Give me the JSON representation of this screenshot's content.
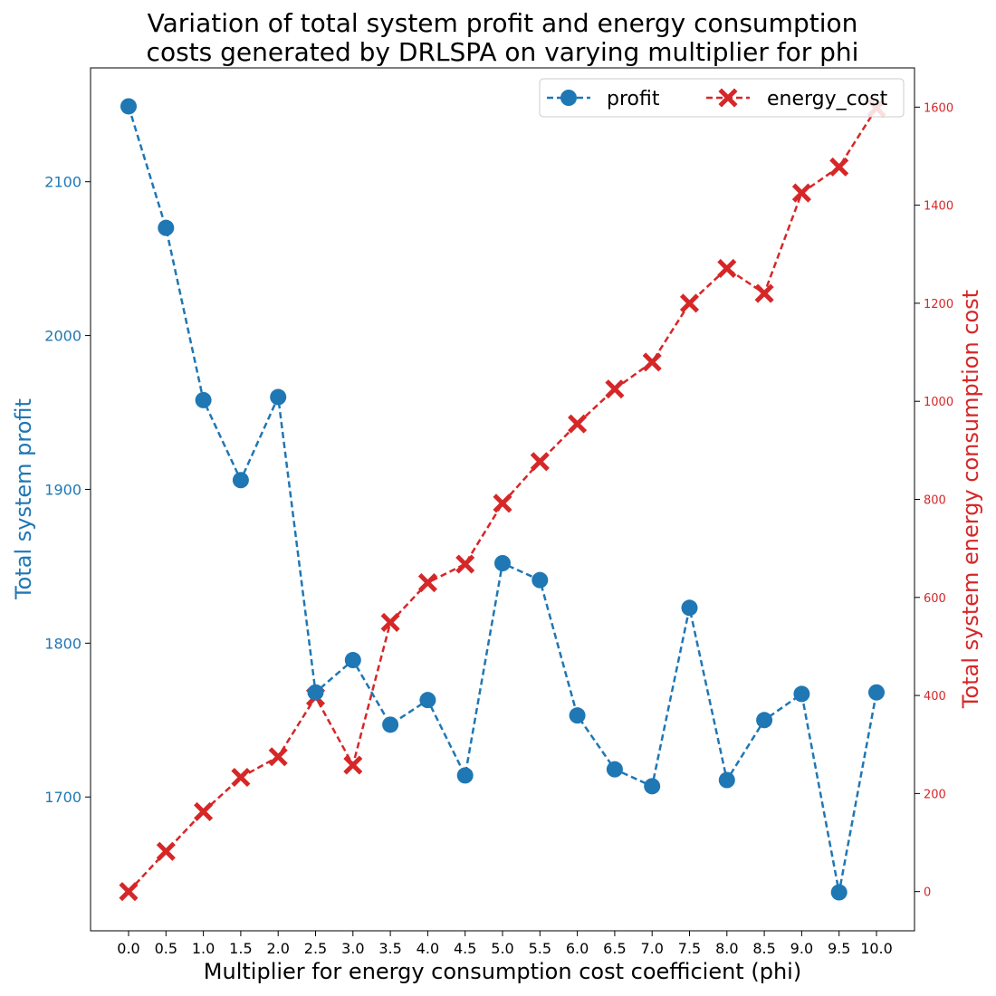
{
  "chart_data": {
    "type": "line",
    "title_line1": "Variation of total system profit and energy consumption",
    "title_line2": "costs generated by DRLSPA on varying multiplier for phi",
    "xlabel": "Multiplier for energy consumption cost coefficient (phi)",
    "ylabel_left": "Total system profit",
    "ylabel_right": "Total system energy consumption cost",
    "x": [
      0.0,
      0.5,
      1.0,
      1.5,
      2.0,
      2.5,
      3.0,
      3.5,
      4.0,
      4.5,
      5.0,
      5.5,
      6.0,
      6.5,
      7.0,
      7.5,
      8.0,
      8.5,
      9.0,
      9.5,
      10.0
    ],
    "x_tick_labels": [
      "0.0",
      "0.5",
      "1.0",
      "1.5",
      "2.0",
      "2.5",
      "3.0",
      "3.5",
      "4.0",
      "4.5",
      "5.0",
      "5.5",
      "6.0",
      "6.5",
      "7.0",
      "7.5",
      "8.0",
      "8.5",
      "9.0",
      "9.5",
      "10.0"
    ],
    "y_left_ticks": [
      1700,
      1800,
      1900,
      2000,
      2100
    ],
    "y_right_ticks": [
      0,
      200,
      400,
      600,
      800,
      1000,
      1200,
      1400,
      1600
    ],
    "y_left_lim": [
      1613,
      2174
    ],
    "y_right_lim": [
      -80,
      1680
    ],
    "legend_position": "top-right",
    "series": [
      {
        "name": "profit",
        "axis": "left",
        "color": "#1f77b4",
        "marker": "circle",
        "linestyle": "dashed",
        "values": [
          2149,
          2070,
          1958,
          1906,
          1960,
          1768,
          1789,
          1747,
          1763,
          1714,
          1852,
          1841,
          1753,
          1718,
          1707,
          1823,
          1711,
          1750,
          1767,
          1638,
          1768
        ]
      },
      {
        "name": "energy_cost",
        "axis": "right",
        "color": "#d62728",
        "marker": "x",
        "linestyle": "dashed",
        "values": [
          0,
          82,
          163,
          233,
          275,
          397,
          258,
          549,
          630,
          668,
          792,
          877,
          954,
          1025,
          1080,
          1200,
          1271,
          1220,
          1425,
          1478,
          1598
        ]
      }
    ]
  }
}
